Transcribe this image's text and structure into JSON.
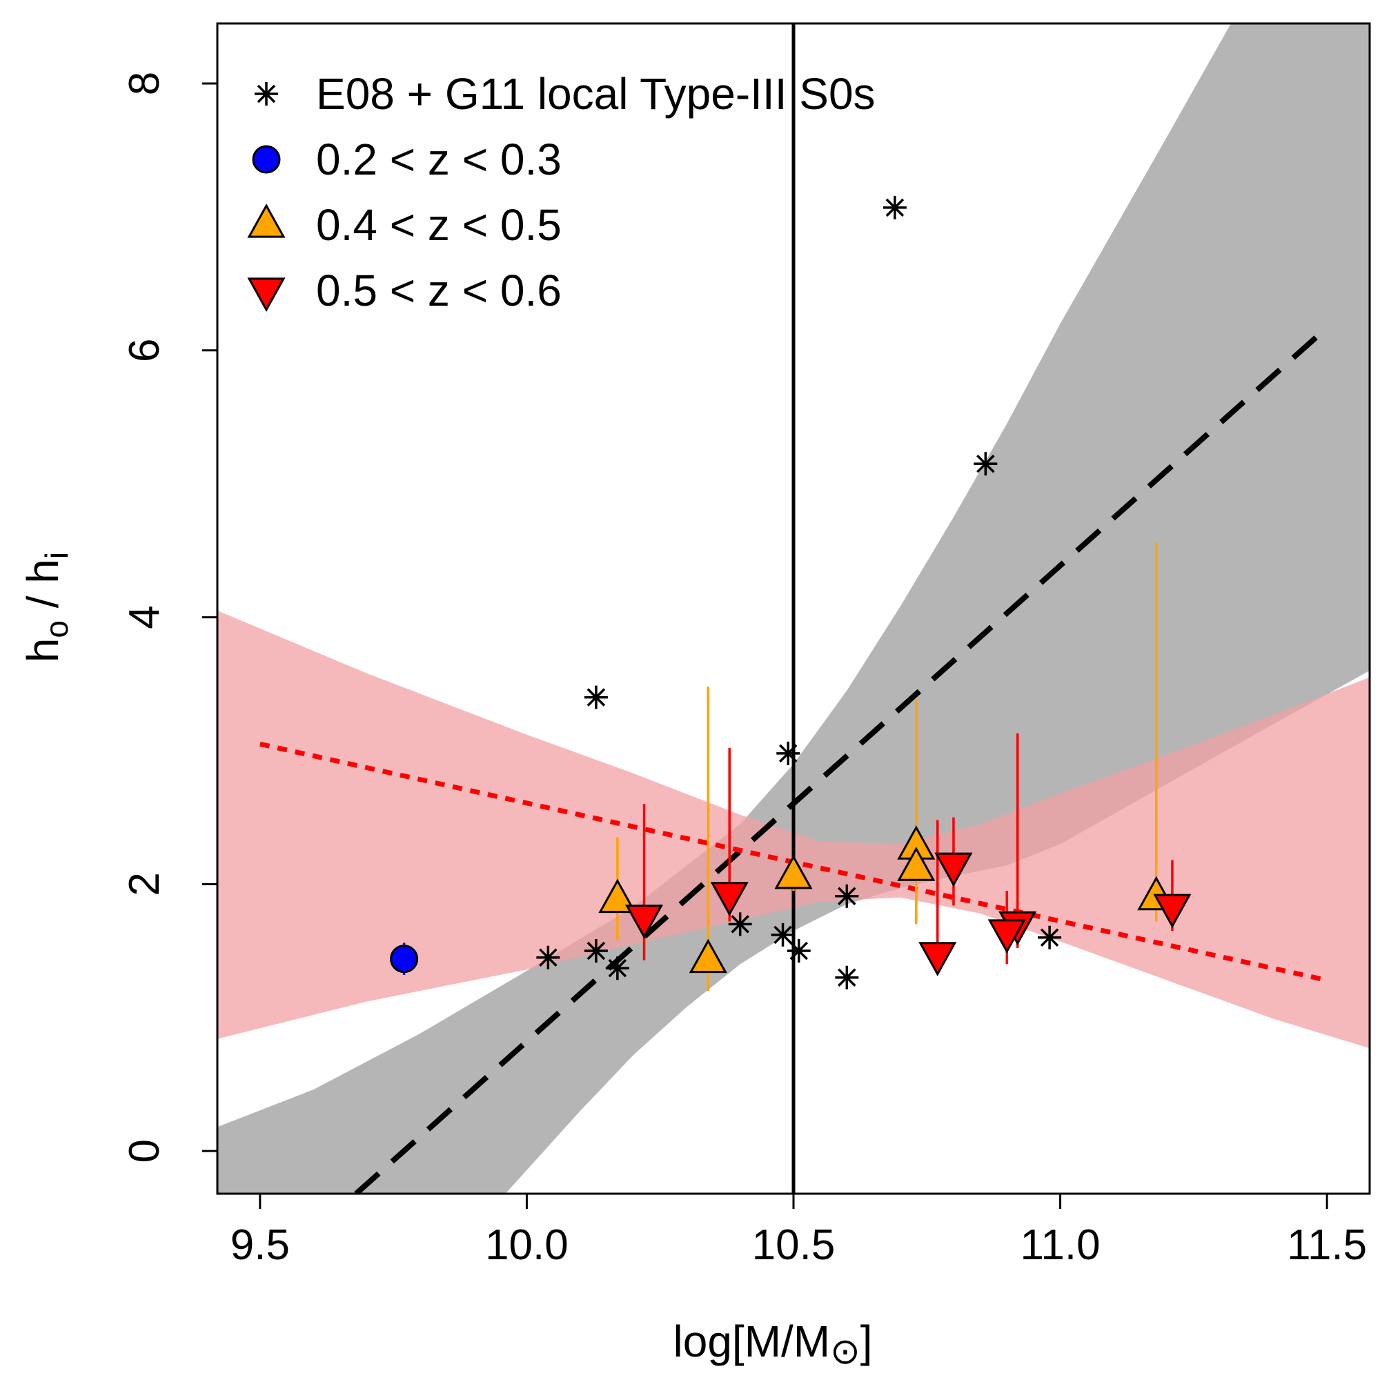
{
  "chart_data": {
    "type": "scatter",
    "xlabel": "log[M/M",
    "xlabel_symbol": "⊙",
    "xlabel_close": "]",
    "ylabel_main": "h",
    "ylabel_sub1": "o",
    "ylabel_mid": " / h",
    "ylabel_sub2": "i",
    "xlim": [
      9.42,
      11.58
    ],
    "ylim": [
      -0.32,
      8.45
    ],
    "x_ticks": [
      9.5,
      10.0,
      10.5,
      11.0,
      11.5
    ],
    "x_tick_labels": [
      "9.5",
      "10.0",
      "10.5",
      "11.0",
      "11.5"
    ],
    "y_ticks": [
      0,
      2,
      4,
      6,
      8
    ],
    "y_tick_labels": [
      "0",
      "2",
      "4",
      "6",
      "8"
    ],
    "grid": false,
    "legend_position": "top-left",
    "vertical_line_x": 10.5,
    "series": [
      {
        "name": "E08 + G11 local Type-III S0s",
        "marker": "asterisk",
        "color": "#000000",
        "points": [
          {
            "x": 10.13,
            "y": 3.4
          },
          {
            "x": 10.69,
            "y": 7.07
          },
          {
            "x": 10.86,
            "y": 5.15
          },
          {
            "x": 10.49,
            "y": 2.98
          },
          {
            "x": 10.6,
            "y": 1.91
          },
          {
            "x": 10.4,
            "y": 1.7
          },
          {
            "x": 10.48,
            "y": 1.62
          },
          {
            "x": 10.51,
            "y": 1.5
          },
          {
            "x": 10.6,
            "y": 1.3
          },
          {
            "x": 10.04,
            "y": 1.45
          },
          {
            "x": 10.13,
            "y": 1.5
          },
          {
            "x": 10.17,
            "y": 1.37
          },
          {
            "x": 10.98,
            "y": 1.6
          }
        ]
      },
      {
        "name": "0.2 < z < 0.3",
        "marker": "circle",
        "color": "#0000ff",
        "points": [
          {
            "x": 9.77,
            "y": 1.44,
            "ylo": 1.32,
            "yhi": 1.56
          }
        ]
      },
      {
        "name": "0.4 < z < 0.5",
        "marker": "triangle-up",
        "color": "#ffa500",
        "points": [
          {
            "x": 10.17,
            "y": 1.88,
            "ylo": 1.58,
            "yhi": 2.35
          },
          {
            "x": 10.34,
            "y": 1.43,
            "ylo": 1.2,
            "yhi": 3.48
          },
          {
            "x": 10.5,
            "y": 2.06,
            "ylo": 1.95,
            "yhi": 2.18
          },
          {
            "x": 10.73,
            "y": 2.28,
            "ylo": 1.72,
            "yhi": 3.38
          },
          {
            "x": 10.73,
            "y": 2.12,
            "ylo": 1.7,
            "yhi": 2.65
          },
          {
            "x": 11.18,
            "y": 1.9,
            "ylo": 1.72,
            "yhi": 4.56
          }
        ]
      },
      {
        "name": "0.5 < z < 0.6",
        "marker": "triangle-down",
        "color": "#ff0000",
        "points": [
          {
            "x": 10.22,
            "y": 1.75,
            "ylo": 1.43,
            "yhi": 2.6
          },
          {
            "x": 10.38,
            "y": 1.92,
            "ylo": 1.72,
            "yhi": 3.02
          },
          {
            "x": 10.8,
            "y": 2.14,
            "ylo": 1.84,
            "yhi": 2.5
          },
          {
            "x": 10.77,
            "y": 1.47,
            "ylo": 1.35,
            "yhi": 2.48
          },
          {
            "x": 10.92,
            "y": 1.7,
            "ylo": 1.52,
            "yhi": 3.13
          },
          {
            "x": 10.9,
            "y": 1.64,
            "ylo": 1.4,
            "yhi": 1.95
          },
          {
            "x": 11.21,
            "y": 1.83,
            "ylo": 1.65,
            "yhi": 2.18
          }
        ]
      }
    ],
    "fits": [
      {
        "name": "local fit",
        "style": "dashed",
        "color": "#000000",
        "x": [
          9.68,
          11.5
        ],
        "y": [
          -0.32,
          6.17
        ]
      },
      {
        "name": "high-z fit",
        "style": "dotted",
        "color": "#ff0000",
        "x": [
          9.5,
          11.5
        ],
        "y": [
          3.05,
          1.28
        ]
      }
    ],
    "bands": [
      {
        "name": "local fit confidence band",
        "color": "#b5b5b5",
        "upper": [
          [
            9.42,
            0.18
          ],
          [
            9.6,
            0.46
          ],
          [
            9.8,
            0.88
          ],
          [
            10.0,
            1.35
          ],
          [
            10.2,
            1.83
          ],
          [
            10.4,
            2.45
          ],
          [
            10.5,
            2.9
          ],
          [
            10.6,
            3.45
          ],
          [
            10.7,
            4.08
          ],
          [
            10.8,
            4.75
          ],
          [
            10.9,
            5.45
          ],
          [
            11.0,
            6.2
          ],
          [
            11.2,
            7.6
          ],
          [
            11.32,
            8.45
          ],
          [
            11.58,
            8.45
          ]
        ],
        "lower": [
          [
            9.42,
            -0.32
          ],
          [
            9.96,
            -0.32
          ],
          [
            10.1,
            0.3
          ],
          [
            10.2,
            0.72
          ],
          [
            10.3,
            1.08
          ],
          [
            10.4,
            1.4
          ],
          [
            10.5,
            1.65
          ],
          [
            10.6,
            1.85
          ],
          [
            10.7,
            1.97
          ],
          [
            10.8,
            2.06
          ],
          [
            10.9,
            2.14
          ],
          [
            11.0,
            2.3
          ],
          [
            11.2,
            2.75
          ],
          [
            11.4,
            3.2
          ],
          [
            11.58,
            3.6
          ]
        ]
      },
      {
        "name": "high-z fit confidence band",
        "color": "#f2a1a5",
        "upper": [
          [
            9.42,
            4.05
          ],
          [
            9.7,
            3.58
          ],
          [
            10.0,
            3.12
          ],
          [
            10.2,
            2.83
          ],
          [
            10.4,
            2.52
          ],
          [
            10.55,
            2.32
          ],
          [
            10.7,
            2.3
          ],
          [
            10.85,
            2.45
          ],
          [
            11.0,
            2.68
          ],
          [
            11.2,
            2.97
          ],
          [
            11.4,
            3.27
          ],
          [
            11.58,
            3.55
          ]
        ],
        "lower": [
          [
            9.42,
            0.84
          ],
          [
            9.7,
            1.12
          ],
          [
            10.0,
            1.36
          ],
          [
            10.2,
            1.55
          ],
          [
            10.4,
            1.73
          ],
          [
            10.55,
            1.87
          ],
          [
            10.7,
            1.9
          ],
          [
            10.85,
            1.78
          ],
          [
            11.0,
            1.57
          ],
          [
            11.2,
            1.28
          ],
          [
            11.4,
            0.99
          ],
          [
            11.58,
            0.77
          ]
        ]
      }
    ]
  }
}
